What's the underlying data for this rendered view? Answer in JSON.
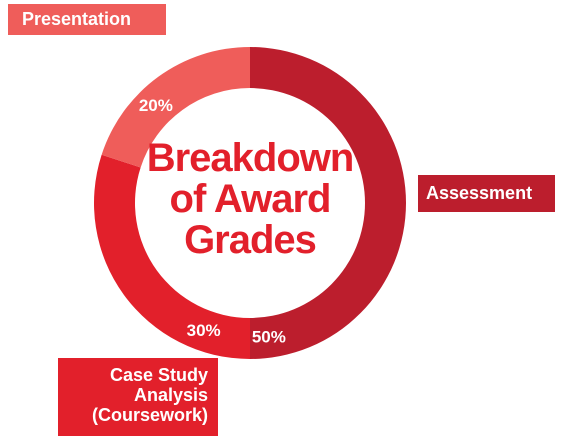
{
  "colors": {
    "assessment": "#bc1e2d",
    "case_study": "#e2202b",
    "presentation": "#ef5d5a",
    "title": "#e2202b",
    "label_text": "#ffffff"
  },
  "title": {
    "line1": "Breakdown",
    "line2": "of Award",
    "line3": "Grades"
  },
  "chart_data": {
    "type": "pie",
    "style": "donut",
    "title": "Breakdown of Award Grades",
    "slices": [
      {
        "name": "Assessment",
        "value": 50,
        "label": "50%"
      },
      {
        "name": "Case Study Analysis (Coursework)",
        "value": 30,
        "label": "30%"
      },
      {
        "name": "Presentation",
        "value": 20,
        "label": "20%"
      }
    ]
  },
  "callouts": {
    "presentation": "Presentation",
    "assessment": "Assessment",
    "case_study": {
      "line1": "Case Study",
      "line2": "Analysis",
      "line3": "(Coursework)"
    }
  }
}
